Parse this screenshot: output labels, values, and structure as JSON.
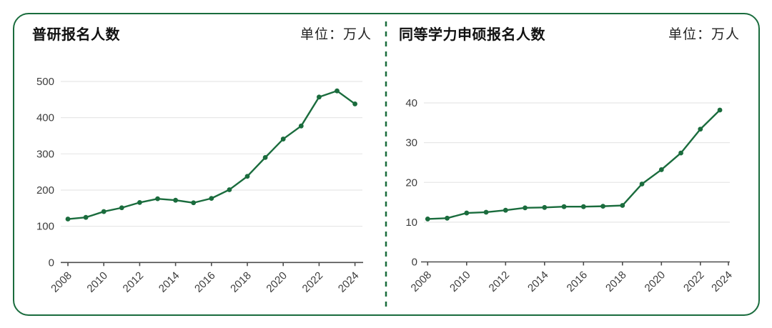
{
  "style": {
    "accent_green": "#1a6c3d",
    "grid_color": "#e7e7e7",
    "axis_color": "#4c4c4c",
    "tick_label_color": "#3d3d3d",
    "title_color": "#111111",
    "background": "#ffffff"
  },
  "chart_data": [
    {
      "type": "line",
      "title": "普研报名人数",
      "unit_label": "单位：万人",
      "ylabel": "万人",
      "x": [
        2008,
        2009,
        2010,
        2011,
        2012,
        2013,
        2014,
        2015,
        2016,
        2017,
        2018,
        2019,
        2020,
        2021,
        2022,
        2023,
        2024
      ],
      "values": [
        120,
        124.6,
        140.6,
        151.1,
        165.6,
        176,
        172,
        164.9,
        177,
        201,
        238,
        290,
        341,
        377,
        457,
        474,
        438
      ],
      "ylim": [
        0,
        500
      ],
      "yticks": [
        0,
        100,
        200,
        300,
        400,
        500
      ],
      "xticks": [
        2008,
        2010,
        2012,
        2014,
        2016,
        2018,
        2020,
        2022,
        2024
      ],
      "line_color": "#1a6c3d",
      "marker": "circle",
      "grid": true,
      "legend": "none"
    },
    {
      "type": "line",
      "title": "同等学力申硕报名人数",
      "unit_label": "单位：万人",
      "ylabel": "万人",
      "x": [
        2008,
        2009,
        2010,
        2011,
        2012,
        2013,
        2014,
        2015,
        2016,
        2017,
        2018,
        2019,
        2020,
        2021,
        2022,
        2023
      ],
      "values": [
        10.8,
        11,
        12.3,
        12.5,
        13,
        13.6,
        13.7,
        13.9,
        13.9,
        14,
        14.2,
        19.6,
        23.2,
        27.4,
        33.4,
        38.2
      ],
      "ylim": [
        0,
        40
      ],
      "yticks": [
        0,
        10,
        20,
        30,
        40
      ],
      "xticks": [
        2008,
        2010,
        2012,
        2014,
        2016,
        2018,
        2020,
        2022,
        2024
      ],
      "line_color": "#1a6c3d",
      "marker": "circle",
      "grid": true,
      "legend": "none"
    }
  ]
}
